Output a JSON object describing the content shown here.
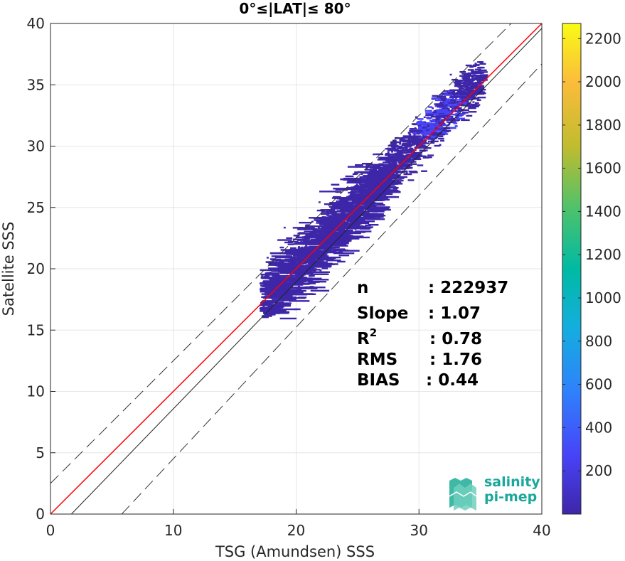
{
  "chart_data": {
    "type": "heatmap",
    "title": "0°≤|LAT|≤ 80°",
    "xlabel": "TSG (Amundsen) SSS",
    "ylabel": "Satellite SSS",
    "xlim": [
      0,
      40
    ],
    "ylim": [
      0,
      40
    ],
    "xticks": [
      0,
      10,
      20,
      30,
      40
    ],
    "yticks": [
      0,
      5,
      10,
      15,
      20,
      25,
      30,
      35,
      40
    ],
    "grid": true,
    "colorbar": {
      "range": [
        0,
        2270
      ],
      "ticks": [
        200,
        400,
        600,
        800,
        1000,
        1200,
        1400,
        1600,
        1800,
        2000,
        2200
      ],
      "colormap": [
        "#3e26a8",
        "#4743f8",
        "#2f81fc",
        "#14aede",
        "#00baa3",
        "#4bc26c",
        "#c1bc2e",
        "#fbbc3b",
        "#f9fb15"
      ]
    },
    "lines": {
      "one_to_one": {
        "x": [
          0,
          40
        ],
        "y": [
          0,
          40
        ]
      },
      "regression": {
        "x": [
          0,
          35
        ],
        "y": [
          0,
          35
        ],
        "color": "#ff0000"
      },
      "upper_bound": {
        "x": [
          0,
          40
        ],
        "y": [
          2.5,
          42.5
        ]
      },
      "lower_bound": {
        "x": [
          5.8,
          40
        ],
        "y": [
          0,
          36.7
        ]
      }
    },
    "density": {
      "x_range": [
        17,
        35
      ],
      "y_range": [
        16,
        37
      ],
      "core": {
        "x": 31,
        "y": 33
      },
      "peak_count": 300
    },
    "stats": [
      {
        "label": "n",
        "sup": "",
        "value": ": 222937"
      },
      {
        "label": "Slope",
        "sup": "",
        "value": ": 1.07"
      },
      {
        "label": "R",
        "sup": "2",
        "value": ": 0.78"
      },
      {
        "label": "RMS",
        "sup": "",
        "value": ": 1.76"
      },
      {
        "label": "BIAS",
        "sup": "",
        "value": ": 0.44"
      }
    ]
  },
  "logo": {
    "line1": "salinity",
    "line2": "pi-mep",
    "color": "#1aa89a"
  }
}
